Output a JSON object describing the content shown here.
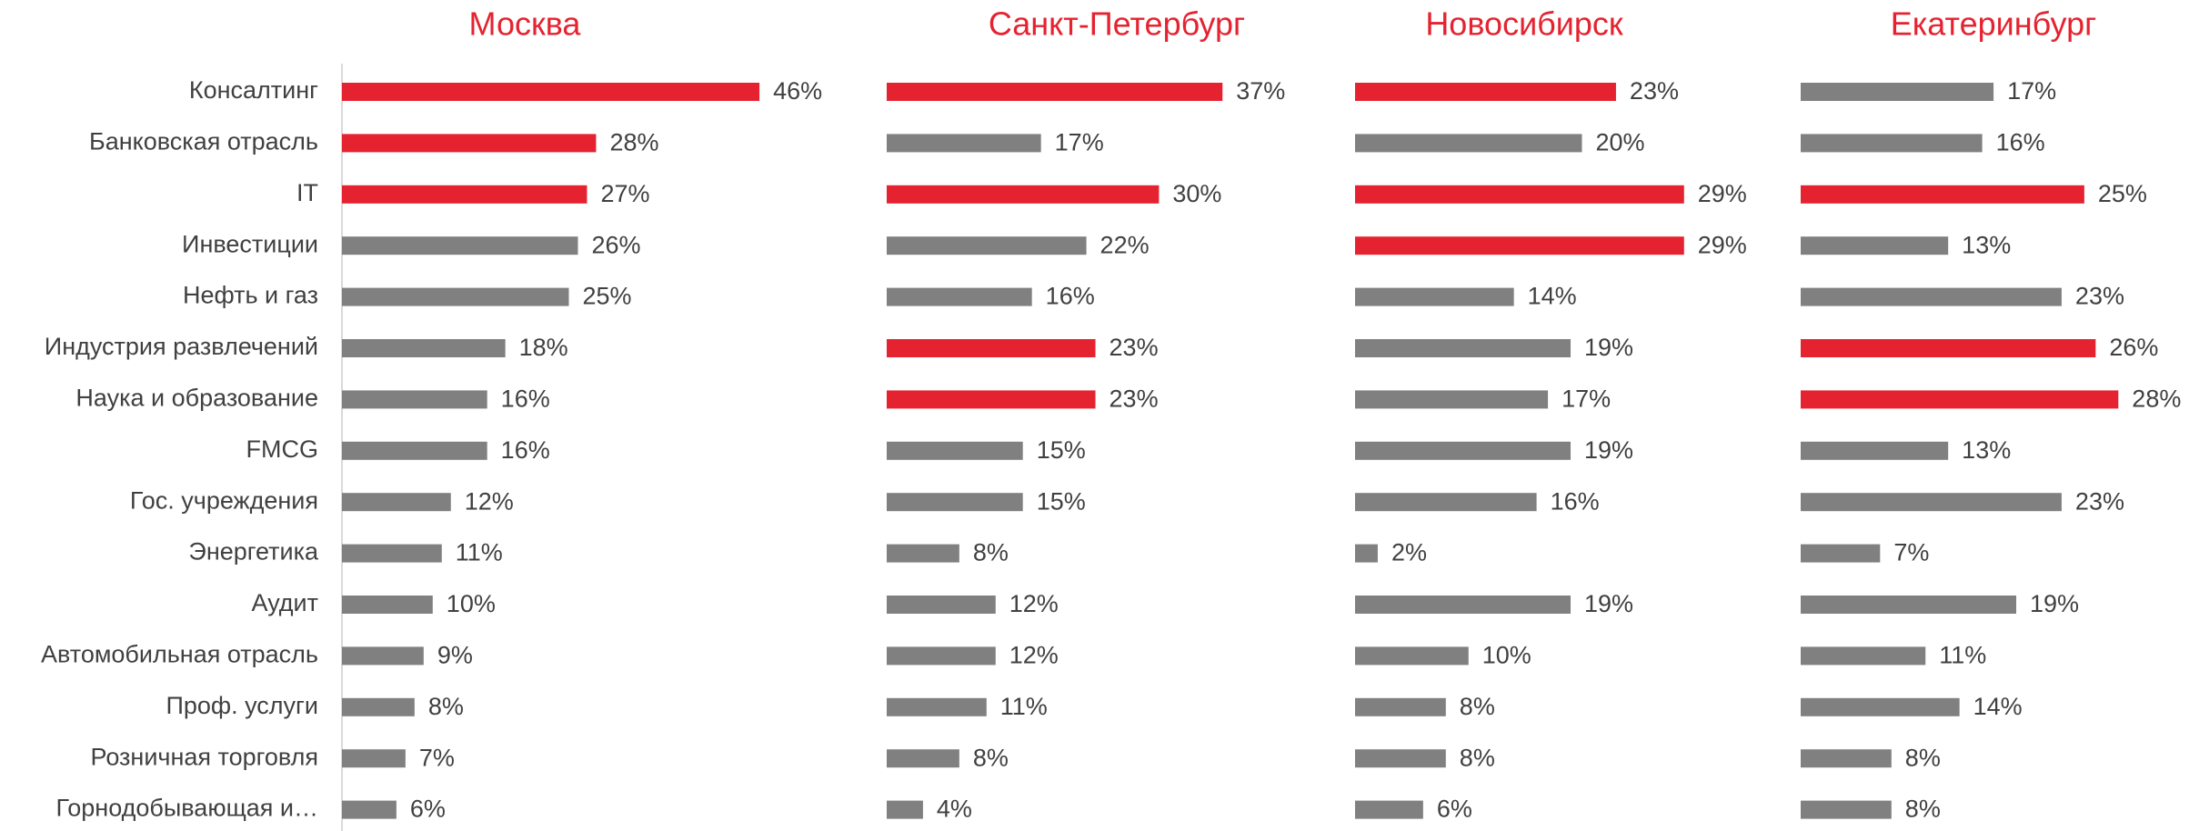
{
  "chart_data": {
    "type": "bar",
    "title_color": "#e52330",
    "categories": [
      "Консалтинг",
      "Банковская отрасль",
      "IT",
      "Инвестиции",
      "Нефть и газ",
      "Индустрия развлечений",
      "Наука и образование",
      "FMCG",
      "Гос. учреждения",
      "Энергетика",
      "Аудит",
      "Автомобильная отрасль",
      "Проф. услуги",
      "Розничная торговля",
      "Горнодобывающая и…"
    ],
    "series": [
      {
        "name": "Москва",
        "xlim": [
          0,
          50
        ],
        "values": [
          46,
          28,
          27,
          26,
          25,
          18,
          16,
          16,
          12,
          11,
          10,
          9,
          8,
          7,
          6
        ],
        "value_labels": [
          "46%",
          "28%",
          "27%",
          "26%",
          "25%",
          "18%",
          "16%",
          "16%",
          "12%",
          "11%",
          "10%",
          "9%",
          "8%",
          "7%",
          "6%"
        ],
        "colors": [
          "#e52330",
          "#e52330",
          "#e52330",
          "#808080",
          "#808080",
          "#808080",
          "#808080",
          "#808080",
          "#808080",
          "#808080",
          "#808080",
          "#808080",
          "#808080",
          "#808080",
          "#808080"
        ]
      },
      {
        "name": "Санкт-Петербург",
        "xlim": [
          0,
          50
        ],
        "values": [
          37,
          17,
          30,
          22,
          16,
          23,
          23,
          15,
          15,
          8,
          12,
          12,
          11,
          8,
          4
        ],
        "value_labels": [
          "37%",
          "17%",
          "30%",
          "22%",
          "16%",
          "23%",
          "23%",
          "15%",
          "15%",
          "8%",
          "12%",
          "12%",
          "11%",
          "8%",
          "4%"
        ],
        "colors": [
          "#e52330",
          "#808080",
          "#e52330",
          "#808080",
          "#808080",
          "#e52330",
          "#e52330",
          "#808080",
          "#808080",
          "#808080",
          "#808080",
          "#808080",
          "#808080",
          "#808080",
          "#808080"
        ]
      },
      {
        "name": "Новосибирск",
        "xlim": [
          0,
          40
        ],
        "values": [
          23,
          20,
          29,
          29,
          14,
          19,
          17,
          19,
          16,
          2,
          19,
          10,
          8,
          8,
          6
        ],
        "value_labels": [
          "23%",
          "20%",
          "29%",
          "29%",
          "14%",
          "19%",
          "17%",
          "19%",
          "16%",
          "2%",
          "19%",
          "10%",
          "8%",
          "8%",
          "6%"
        ],
        "colors": [
          "#e52330",
          "#808080",
          "#e52330",
          "#e52330",
          "#808080",
          "#808080",
          "#808080",
          "#808080",
          "#808080",
          "#808080",
          "#808080",
          "#808080",
          "#808080",
          "#808080",
          "#808080"
        ]
      },
      {
        "name": "Екатеринбург",
        "xlim": [
          0,
          40
        ],
        "values": [
          17,
          16,
          25,
          13,
          23,
          26,
          28,
          13,
          23,
          7,
          19,
          11,
          14,
          8,
          8
        ],
        "value_labels": [
          "17%",
          "16%",
          "25%",
          "13%",
          "23%",
          "26%",
          "28%",
          "13%",
          "23%",
          "7%",
          "19%",
          "11%",
          "14%",
          "8%",
          "8%"
        ],
        "colors": [
          "#808080",
          "#808080",
          "#e52330",
          "#808080",
          "#808080",
          "#e52330",
          "#e52330",
          "#808080",
          "#808080",
          "#808080",
          "#808080",
          "#808080",
          "#808080",
          "#808080",
          "#808080"
        ]
      }
    ]
  }
}
